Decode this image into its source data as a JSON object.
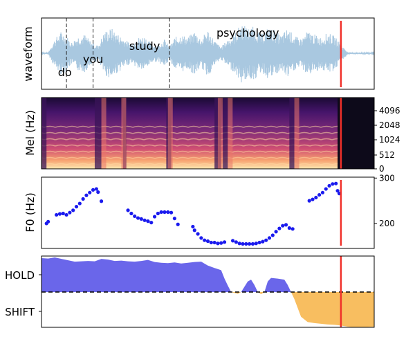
{
  "chart_data": [
    {
      "type": "line",
      "panel": "waveform",
      "ylabel": "waveform",
      "words": [
        {
          "text": "do",
          "t": 0.07
        },
        {
          "text": "you",
          "t": 0.155
        },
        {
          "text": "study",
          "t": 0.31
        },
        {
          "text": "psychology",
          "t": 0.62
        }
      ],
      "word_boundaries": [
        0.075,
        0.155,
        0.385
      ],
      "marker": 0.9,
      "amplitude_envelope": [
        [
          0.0,
          0.02
        ],
        [
          0.02,
          0.03
        ],
        [
          0.04,
          0.45
        ],
        [
          0.06,
          0.7
        ],
        [
          0.075,
          0.55
        ],
        [
          0.09,
          0.35
        ],
        [
          0.11,
          0.55
        ],
        [
          0.13,
          0.6
        ],
        [
          0.15,
          0.35
        ],
        [
          0.17,
          0.25
        ],
        [
          0.19,
          0.7
        ],
        [
          0.21,
          0.8
        ],
        [
          0.23,
          0.6
        ],
        [
          0.25,
          0.45
        ],
        [
          0.27,
          0.3
        ],
        [
          0.29,
          0.5
        ],
        [
          0.31,
          0.55
        ],
        [
          0.33,
          0.3
        ],
        [
          0.35,
          0.25
        ],
        [
          0.37,
          0.45
        ],
        [
          0.385,
          0.2
        ],
        [
          0.4,
          0.5
        ],
        [
          0.42,
          0.6
        ],
        [
          0.44,
          0.5
        ],
        [
          0.46,
          0.7
        ],
        [
          0.48,
          0.45
        ],
        [
          0.5,
          0.75
        ],
        [
          0.52,
          0.4
        ],
        [
          0.54,
          0.2
        ],
        [
          0.56,
          0.45
        ],
        [
          0.58,
          0.6
        ],
        [
          0.6,
          0.95
        ],
        [
          0.62,
          0.8
        ],
        [
          0.64,
          0.85
        ],
        [
          0.66,
          0.6
        ],
        [
          0.68,
          0.8
        ],
        [
          0.7,
          0.75
        ],
        [
          0.72,
          0.55
        ],
        [
          0.74,
          0.8
        ],
        [
          0.76,
          0.55
        ],
        [
          0.78,
          0.45
        ],
        [
          0.8,
          0.7
        ],
        [
          0.82,
          0.6
        ],
        [
          0.84,
          0.5
        ],
        [
          0.86,
          0.65
        ],
        [
          0.88,
          0.55
        ],
        [
          0.9,
          0.3
        ],
        [
          0.92,
          0.03
        ],
        [
          1.0,
          0.02
        ]
      ]
    },
    {
      "type": "heatmap",
      "panel": "mel-spectrogram",
      "ylabel": "Mel (Hz)",
      "yticks": [
        "0",
        "512",
        "1024",
        "2048",
        "4096"
      ],
      "marker": 0.9,
      "speech_end": 0.89
    },
    {
      "type": "scatter",
      "panel": "f0",
      "ylabel": "F0 (Hz)",
      "yticks": [
        "200",
        "300"
      ],
      "ylim": [
        145,
        302
      ],
      "marker": 0.9,
      "points": [
        [
          0.015,
          200
        ],
        [
          0.02,
          204
        ],
        [
          0.045,
          219
        ],
        [
          0.055,
          221
        ],
        [
          0.065,
          222
        ],
        [
          0.075,
          219
        ],
        [
          0.085,
          224
        ],
        [
          0.095,
          229
        ],
        [
          0.105,
          237
        ],
        [
          0.115,
          244
        ],
        [
          0.125,
          254
        ],
        [
          0.135,
          262
        ],
        [
          0.145,
          268
        ],
        [
          0.155,
          274
        ],
        [
          0.165,
          276
        ],
        [
          0.17,
          269
        ],
        [
          0.18,
          249
        ],
        [
          0.26,
          229
        ],
        [
          0.27,
          222
        ],
        [
          0.28,
          216
        ],
        [
          0.29,
          212
        ],
        [
          0.3,
          210
        ],
        [
          0.31,
          207
        ],
        [
          0.32,
          205
        ],
        [
          0.33,
          202
        ],
        [
          0.34,
          215
        ],
        [
          0.35,
          222
        ],
        [
          0.36,
          225
        ],
        [
          0.37,
          225
        ],
        [
          0.38,
          225
        ],
        [
          0.39,
          224
        ],
        [
          0.4,
          211
        ],
        [
          0.41,
          198
        ],
        [
          0.455,
          193
        ],
        [
          0.46,
          185
        ],
        [
          0.47,
          177
        ],
        [
          0.48,
          168
        ],
        [
          0.49,
          163
        ],
        [
          0.5,
          161
        ],
        [
          0.51,
          158
        ],
        [
          0.52,
          158
        ],
        [
          0.53,
          156
        ],
        [
          0.54,
          157
        ],
        [
          0.55,
          159
        ],
        [
          0.575,
          162
        ],
        [
          0.585,
          159
        ],
        [
          0.595,
          156
        ],
        [
          0.605,
          155
        ],
        [
          0.615,
          155
        ],
        [
          0.625,
          155
        ],
        [
          0.635,
          155
        ],
        [
          0.645,
          156
        ],
        [
          0.655,
          158
        ],
        [
          0.665,
          160
        ],
        [
          0.675,
          163
        ],
        [
          0.685,
          168
        ],
        [
          0.695,
          174
        ],
        [
          0.705,
          182
        ],
        [
          0.715,
          189
        ],
        [
          0.725,
          195
        ],
        [
          0.735,
          197
        ],
        [
          0.745,
          190
        ],
        [
          0.755,
          188
        ],
        [
          0.805,
          250
        ],
        [
          0.815,
          253
        ],
        [
          0.825,
          257
        ],
        [
          0.835,
          263
        ],
        [
          0.845,
          268
        ],
        [
          0.855,
          276
        ],
        [
          0.865,
          283
        ],
        [
          0.875,
          287
        ],
        [
          0.885,
          288
        ],
        [
          0.89,
          272
        ],
        [
          0.895,
          266
        ]
      ]
    },
    {
      "type": "area",
      "panel": "turn-taking",
      "yticks": [
        "HOLD",
        "SHIFT"
      ],
      "ylim": [
        -1,
        1
      ],
      "marker": 0.9,
      "hold_color": "#5a55e8",
      "shift_color": "#f7b74f",
      "series": [
        {
          "values": [
            [
              0.0,
              0.96
            ],
            [
              0.02,
              0.95
            ],
            [
              0.04,
              0.98
            ],
            [
              0.06,
              0.94
            ],
            [
              0.08,
              0.9
            ],
            [
              0.1,
              0.86
            ],
            [
              0.12,
              0.87
            ],
            [
              0.14,
              0.88
            ],
            [
              0.16,
              0.87
            ],
            [
              0.18,
              0.94
            ],
            [
              0.2,
              0.92
            ],
            [
              0.22,
              0.88
            ],
            [
              0.24,
              0.89
            ],
            [
              0.26,
              0.87
            ],
            [
              0.28,
              0.86
            ],
            [
              0.3,
              0.88
            ],
            [
              0.32,
              0.91
            ],
            [
              0.34,
              0.85
            ],
            [
              0.36,
              0.83
            ],
            [
              0.38,
              0.82
            ],
            [
              0.4,
              0.84
            ],
            [
              0.42,
              0.81
            ],
            [
              0.44,
              0.83
            ],
            [
              0.46,
              0.85
            ],
            [
              0.48,
              0.86
            ],
            [
              0.5,
              0.75
            ],
            [
              0.52,
              0.68
            ],
            [
              0.54,
              0.62
            ],
            [
              0.55,
              0.38
            ],
            [
              0.56,
              0.18
            ],
            [
              0.57,
              0.0
            ],
            [
              0.59,
              -0.05
            ],
            [
              0.6,
              0.0
            ],
            [
              0.61,
              0.15
            ],
            [
              0.62,
              0.3
            ],
            [
              0.63,
              0.35
            ],
            [
              0.64,
              0.2
            ],
            [
              0.65,
              0.0
            ],
            [
              0.66,
              -0.06
            ],
            [
              0.67,
              0.0
            ],
            [
              0.68,
              0.3
            ],
            [
              0.69,
              0.4
            ],
            [
              0.71,
              0.38
            ],
            [
              0.73,
              0.35
            ],
            [
              0.74,
              0.2
            ],
            [
              0.75,
              0.0
            ],
            [
              0.76,
              -0.2
            ],
            [
              0.78,
              -0.7
            ],
            [
              0.8,
              -0.85
            ],
            [
              0.82,
              -0.88
            ],
            [
              0.84,
              -0.9
            ],
            [
              0.86,
              -0.92
            ],
            [
              0.88,
              -0.93
            ],
            [
              0.9,
              -0.95
            ],
            [
              0.92,
              -0.98
            ],
            [
              0.94,
              -1.0
            ],
            [
              0.96,
              -1.0
            ],
            [
              0.98,
              -0.99
            ],
            [
              1.0,
              -0.98
            ]
          ]
        }
      ]
    }
  ]
}
